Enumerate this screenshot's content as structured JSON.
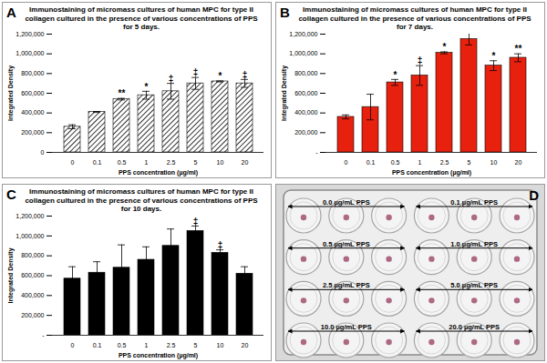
{
  "chart_data": [
    {
      "type": "bar",
      "panel": "A",
      "title": "Immunostaining of micromass cultures of human MPC for type II collagen cultured in the presence of various concentrations of PPS for 5 days.",
      "x_label": "PPS concentration (µg/ml)",
      "y_label": "Integrated Density",
      "categories": [
        "0",
        "0.1",
        "0.5",
        "1",
        "2.5",
        "5",
        "10",
        "20"
      ],
      "values": [
        260000,
        410000,
        540000,
        580000,
        620000,
        700000,
        720000,
        700000
      ],
      "errors": [
        20000,
        5000,
        8000,
        40000,
        80000,
        60000,
        5000,
        40000
      ],
      "annotations": [
        null,
        null,
        "**",
        "*",
        "‡",
        "‡",
        "*",
        "‡"
      ],
      "color": "#000000",
      "ylim": [
        0,
        1200000
      ],
      "yticks": [
        0,
        {
          "value": 200000,
          "label": "200,000"
        },
        {
          "value": 400000,
          "label": "400,000"
        },
        {
          "value": 600000,
          "label": "600,000"
        },
        {
          "value": 800000,
          "label": "800,000"
        },
        {
          "value": 1000000,
          "label": "1,000,000"
        },
        {
          "value": 1200000,
          "label": "1,200,000"
        }
      ],
      "grid": false
    },
    {
      "type": "bar",
      "panel": "B",
      "title": "Immunostaining of micromass cultures of human MPC for type II collagen cultured in the presence of various concentrations of PPS for 7 days.",
      "x_label": "PPS concentration (µg/ml)",
      "y_label": "Integrated Density",
      "categories": [
        "0",
        "0.1",
        "0.5",
        "1",
        "2.5",
        "5",
        "10",
        "20"
      ],
      "values": [
        360000,
        460000,
        710000,
        780000,
        1010000,
        1150000,
        880000,
        960000
      ],
      "errors": [
        20000,
        130000,
        30000,
        100000,
        10000,
        60000,
        50000,
        40000
      ],
      "annotations": [
        null,
        null,
        "*",
        "‡",
        "*",
        null,
        "*",
        "**"
      ],
      "color": "#e8210f",
      "ylim": [
        0,
        1200000
      ],
      "yticks": [
        {
          "value": 0,
          "label": "-"
        },
        {
          "value": 200000,
          "label": "200,000"
        },
        {
          "value": 400000,
          "label": "400,000"
        },
        {
          "value": 600000,
          "label": "600,000"
        },
        {
          "value": 800000,
          "label": "800,000"
        },
        {
          "value": 1000000,
          "label": "1,000,000"
        },
        {
          "value": 1200000,
          "label": "1,200,000"
        }
      ],
      "grid": false
    },
    {
      "type": "bar",
      "panel": "C",
      "title": "Immunostaining of micromass cultures of human MPC for type II collagen cultured in the presence of various concentrations of PPS for 10 days.",
      "x_label": "PPS concentration (µg/ml)",
      "y_label": "Integrated Density",
      "categories": [
        "0",
        "0.1",
        "0.5",
        "1",
        "2.5",
        "5",
        "10",
        "20"
      ],
      "values": [
        570000,
        630000,
        680000,
        760000,
        900000,
        1050000,
        830000,
        620000
      ],
      "errors": [
        120000,
        110000,
        230000,
        130000,
        170000,
        50000,
        30000,
        70000
      ],
      "annotations": [
        null,
        null,
        null,
        null,
        null,
        "‡",
        "‡",
        null
      ],
      "color": "#000000",
      "ylim": [
        0,
        1200000
      ],
      "yticks": [
        {
          "value": 0,
          "label": "-"
        },
        {
          "value": 200000,
          "label": "200,000"
        },
        {
          "value": 400000,
          "label": "400,000"
        },
        {
          "value": 600000,
          "label": "600,000"
        },
        {
          "value": 800000,
          "label": "800,000"
        },
        {
          "value": 1000000,
          "label": "1,000,000"
        },
        {
          "value": 1200000,
          "label": "1,200,000"
        }
      ],
      "grid": false
    }
  ],
  "image": {
    "panel": "D",
    "labels": [
      "0.0 µg/mL PPS",
      "0.1 µg/mL PPS",
      "0.5 µg/mL PPS",
      "1.0 µg/mL PPS",
      "2.5 µg/mL PPS",
      "5.0 µg/mL PPS",
      "10.0 µg/mL PPS",
      "20.0 µg/mL PPS"
    ]
  }
}
